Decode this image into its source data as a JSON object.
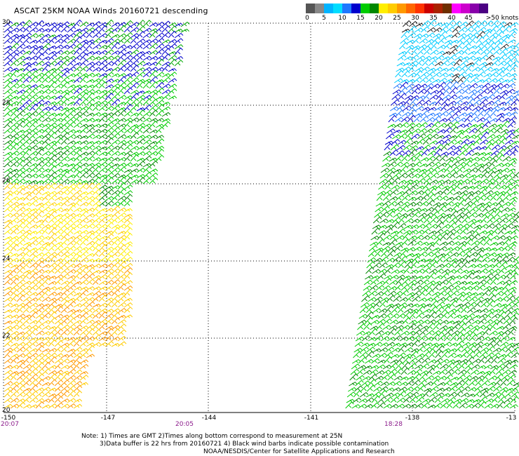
{
  "title": "ASCAT 25KM NOAA Winds 20160721 descending",
  "legend": {
    "colors": [
      "#555555",
      "#888888",
      "#00b4ff",
      "#00ddff",
      "#1e78ff",
      "#0000cd",
      "#00cc00",
      "#008800",
      "#ffee00",
      "#ffcc00",
      "#ff9900",
      "#ff6600",
      "#ff3300",
      "#cc0000",
      "#aa2200",
      "#6e2e00",
      "#ff00ff",
      "#cc00cc",
      "#8800aa",
      "#4b0082"
    ],
    "labels": [
      "0",
      "5",
      "10",
      "15",
      "20",
      "25",
      "30",
      "35",
      "40",
      "45",
      ">50 knots"
    ]
  },
  "lat_labels": [
    "30",
    "28",
    "26",
    "24",
    "22",
    "20"
  ],
  "lon_labels": [
    "-150",
    "-147",
    "-144",
    "-141",
    "-138",
    "-13"
  ],
  "times": [
    "20:07",
    "20:05",
    "18:28"
  ],
  "notes": [
    "Note: 1) Times are GMT 2)Times along bottom correspond to measurement at 25N",
    "3)Data buffer is 22 hrs from 20160721 4) Black wind barbs indicate possible contamination",
    "NOAA/NESDIS/Center for Satellite Applications and Research"
  ]
}
